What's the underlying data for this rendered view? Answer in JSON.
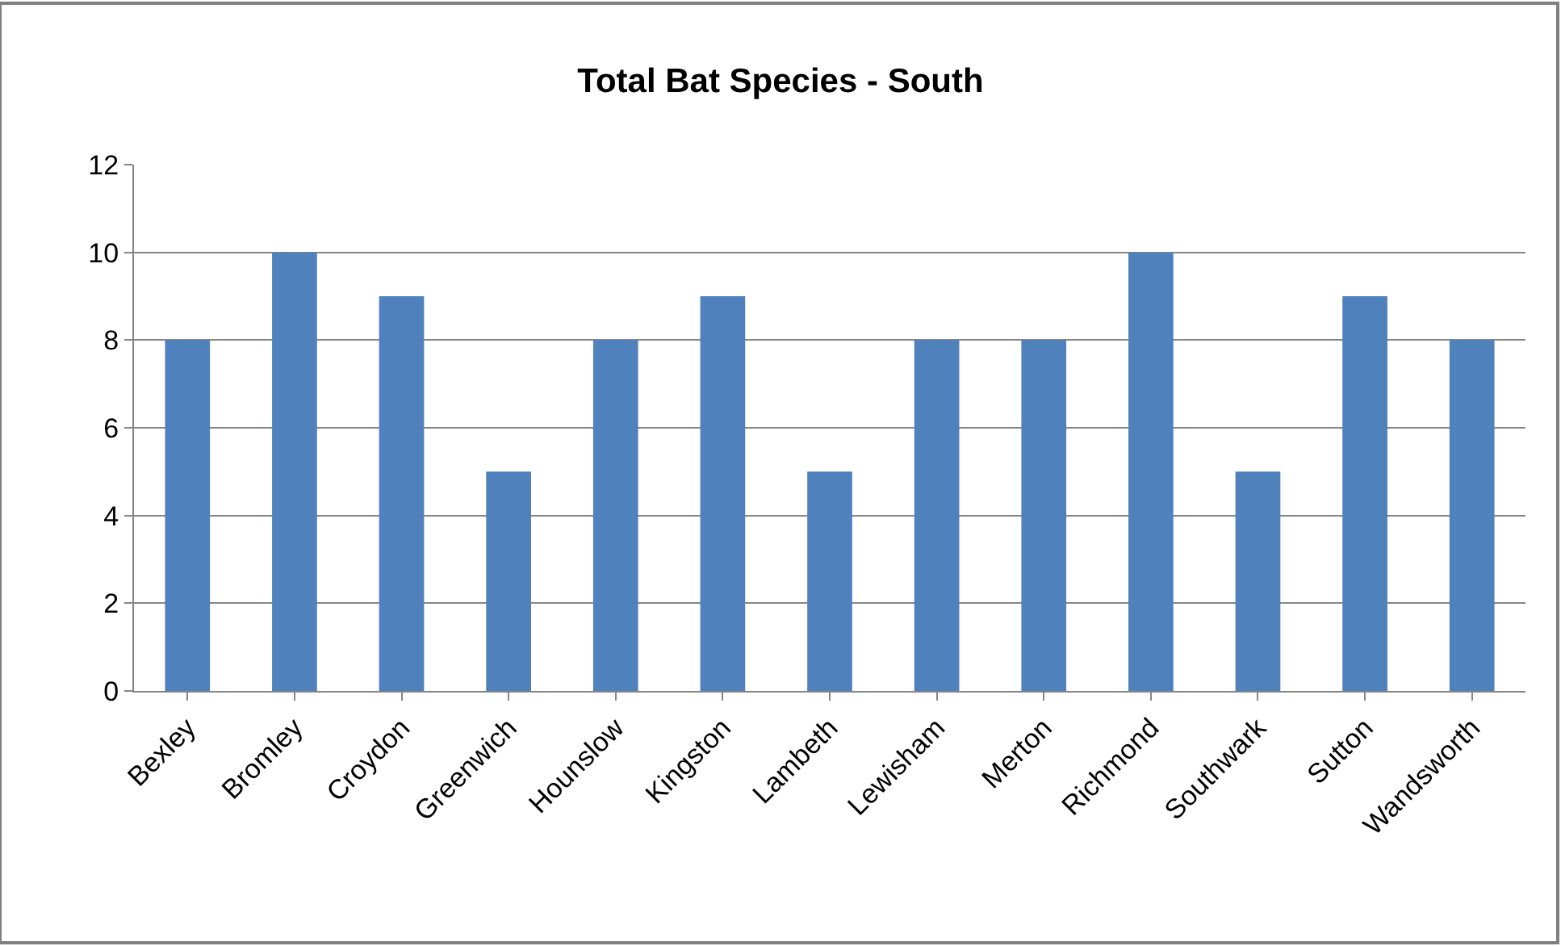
{
  "chart_data": {
    "type": "bar",
    "title": "Total Bat Species - South",
    "categories": [
      "Bexley",
      "Bromley",
      "Croydon",
      "Greenwich",
      "Hounslow",
      "Kingston",
      "Lambeth",
      "Lewisham",
      "Merton",
      "Richmond",
      "Southwark",
      "Sutton",
      "Wandsworth"
    ],
    "values": [
      8,
      10,
      9,
      5,
      8,
      9,
      5,
      8,
      8,
      10,
      5,
      9,
      8
    ],
    "color": "#4f81bd",
    "ylim": [
      0,
      12
    ],
    "yticks": [
      0,
      2,
      4,
      6,
      8,
      10,
      12
    ],
    "grid": "y",
    "legend": false
  }
}
